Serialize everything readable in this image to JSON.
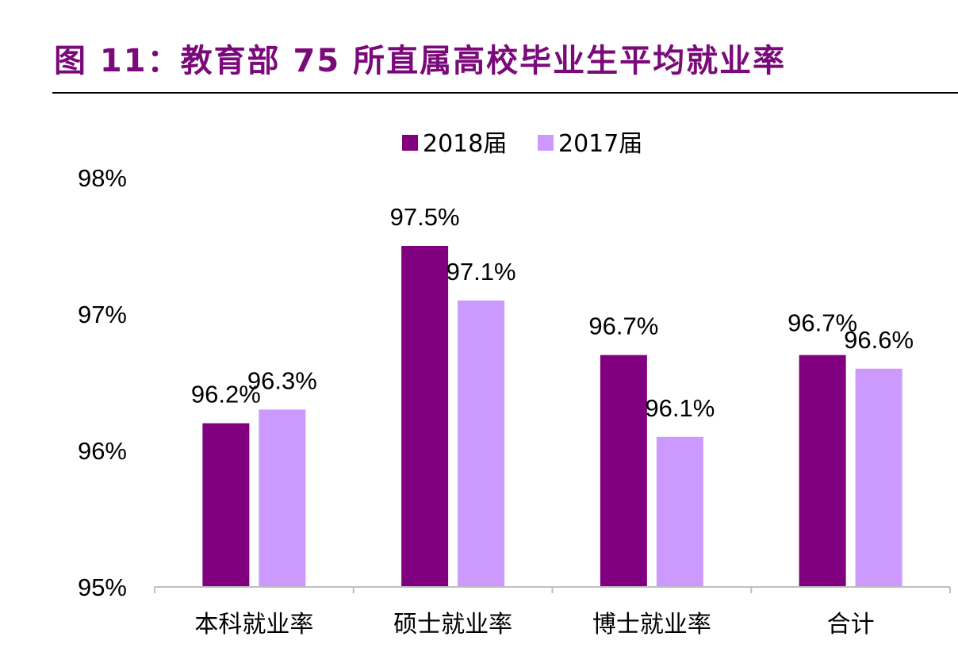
{
  "figure": {
    "title": "图 11：教育部 75 所直属高校毕业生平均就业率"
  },
  "colors": {
    "title": "#7a0a7a",
    "series_2018": "#800080",
    "series_2017": "#cc99ff"
  },
  "chart_data": {
    "type": "bar",
    "title": "图 11：教育部 75 所直属高校毕业生平均就业率",
    "categories": [
      "本科就业率",
      "硕士就业率",
      "博士就业率",
      "合计"
    ],
    "series": [
      {
        "name": "2018届",
        "values": [
          96.2,
          97.5,
          96.7,
          96.7
        ],
        "labels": [
          "96.2%",
          "97.5%",
          "96.7%",
          "96.7%"
        ]
      },
      {
        "name": "2017届",
        "values": [
          96.3,
          97.1,
          96.1,
          96.6
        ],
        "labels": [
          "96.3%",
          "97.1%",
          "96.1%",
          "96.6%"
        ]
      }
    ],
    "ylim": [
      95,
      98
    ],
    "yticks": [
      95,
      96,
      97,
      98
    ],
    "ytick_labels": [
      "95%",
      "96%",
      "97%",
      "98%"
    ],
    "xlabel": "",
    "ylabel": "",
    "grid": false,
    "legend_position": "top"
  }
}
